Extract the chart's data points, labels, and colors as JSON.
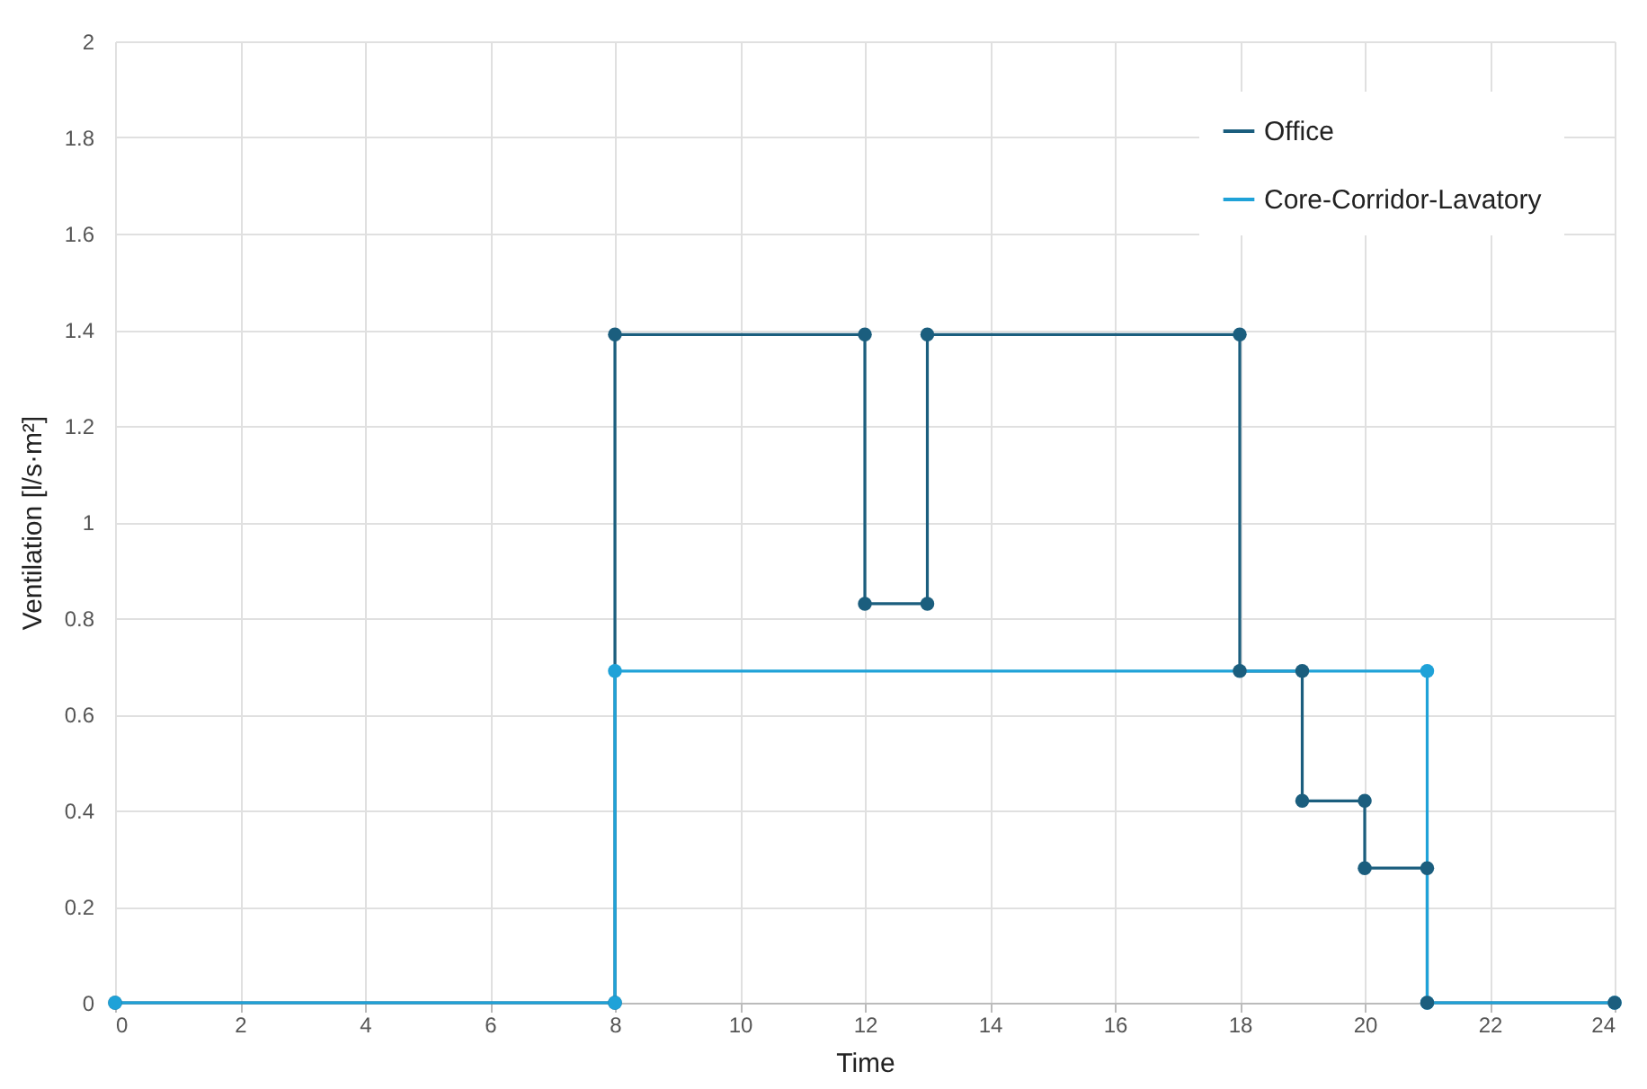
{
  "chart_data": {
    "type": "line",
    "xlabel": "Time",
    "ylabel": "Ventilation [l/s·m²]",
    "xlim": [
      0,
      24
    ],
    "xticks": [
      0,
      2,
      4,
      6,
      8,
      10,
      12,
      14,
      16,
      18,
      20,
      22,
      24
    ],
    "ylim": [
      0,
      2
    ],
    "yticks": [
      0,
      0.2,
      0.4,
      0.6,
      0.8,
      1,
      1.2,
      1.4,
      1.6,
      1.8,
      2
    ],
    "grid": true,
    "legend": "top right",
    "marker": "circle",
    "line_style": "solid",
    "series": [
      {
        "name": "Office",
        "color": "#1b5e7e",
        "x": [
          0,
          8,
          8,
          12,
          12,
          13,
          13,
          18,
          18,
          19,
          19,
          20,
          20,
          21,
          21,
          24
        ],
        "values": [
          0,
          0,
          1.39,
          1.39,
          0.83,
          0.83,
          1.39,
          1.39,
          0.69,
          0.69,
          0.42,
          0.42,
          0.28,
          0.28,
          0,
          0
        ]
      },
      {
        "name": "Core-Corridor-Lavatory",
        "color": "#1fa2d8",
        "x": [
          0,
          8,
          8,
          21,
          21,
          24
        ],
        "values": [
          0,
          0,
          0.69,
          0.69,
          0,
          0
        ]
      }
    ]
  }
}
